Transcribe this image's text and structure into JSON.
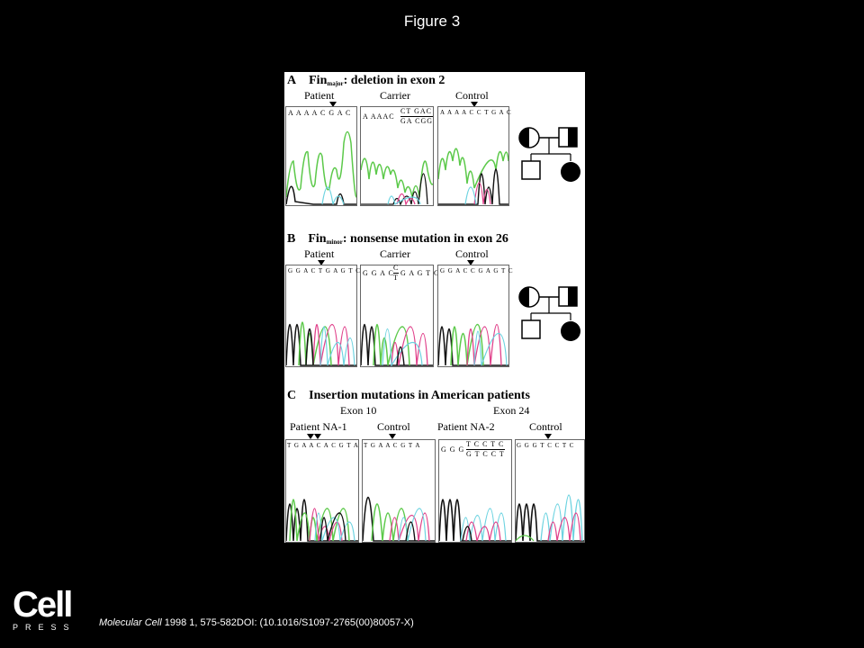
{
  "slide": {
    "title": "Figure 3",
    "journal": "Molecular Cell",
    "citation_rest": " 1998 1, 575-582DOI: (10.1016/S1097-2765(00)80057-X)",
    "logo_big": "Cell",
    "logo_small": "PRESS"
  },
  "figure": {
    "A": {
      "letter": "A",
      "head_pre": "Fin",
      "head_sub": "major",
      "head_post": ": deletion in exon 2",
      "labels": [
        "Patient",
        "Carrier",
        "Control"
      ],
      "seqs": [
        "A A A A C G A C",
        "A AAAC",
        "CT GAC",
        "GA CGG",
        "A A A A C C T G A C"
      ]
    },
    "B": {
      "letter": "B",
      "head_pre": "Fin",
      "head_sub": "minor",
      "head_post": ": nonsense mutation in exon 26",
      "labels": [
        "Patient",
        "Carrier",
        "Control"
      ],
      "seqs": [
        "G G A C T G A G T C",
        "G G A C",
        "C",
        "T",
        "G A G T  C",
        "G G A C C G A G T C"
      ]
    },
    "C": {
      "letter": "C",
      "heading": "Insertion mutations in American patients",
      "exons": [
        "Exon 10",
        "Exon 24"
      ],
      "labels": [
        "Patient NA-1",
        "Control",
        "Patient NA-2",
        "Control"
      ],
      "seqs": [
        "T G A A C A C G T A",
        "T G A A C G T A",
        "G G G",
        "T C C T C",
        "G T C C T",
        "G G G T C C T C"
      ]
    }
  }
}
